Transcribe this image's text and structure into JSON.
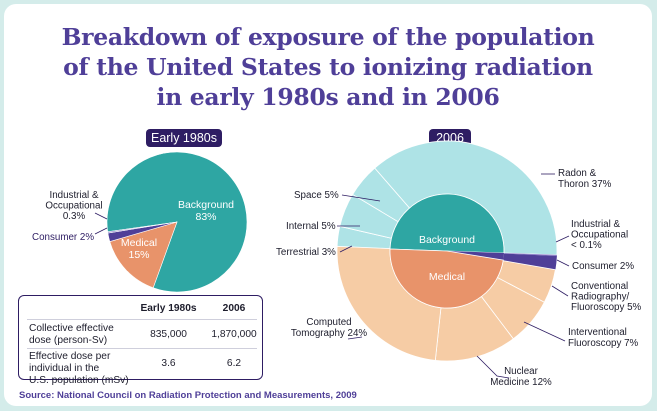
{
  "title_lines": [
    "Breakdown of exposure of the population",
    "of the United States to ionizing radiation",
    "in early 1980s and in 2006"
  ],
  "colors": {
    "title": "#4f3f98",
    "pill": "#2e1d63",
    "background": "#2ea6a3",
    "medical": "#e8936a",
    "purple": "#4f3f98",
    "light_teal": "#aee3e6",
    "peach": "#f6cca5",
    "page": "#d4ecea"
  },
  "chart_data": [
    {
      "type": "pie",
      "title": "Early 1980s",
      "slices": [
        {
          "label": "Background",
          "value": 83,
          "display": "83%"
        },
        {
          "label": "Medical",
          "value": 15,
          "display": "15%"
        },
        {
          "label": "Consumer",
          "value": 2,
          "display": "2%"
        },
        {
          "label": "Industrial & Occupational",
          "value": 0.3,
          "display": "0.3%"
        }
      ],
      "labels": {
        "background": [
          "Background",
          "83%"
        ],
        "medical": [
          "Medical",
          "15%"
        ],
        "consumer": [
          "Consumer 2%"
        ],
        "industrial": [
          "Industrial &",
          "Occupational",
          "0.3%"
        ]
      }
    },
    {
      "type": "pie",
      "title": "2006",
      "inner_ring": [
        {
          "label": "Background",
          "value": 50
        },
        {
          "label": "Medical",
          "value": 48
        },
        {
          "label": "Consumer",
          "value": 2
        }
      ],
      "outer_ring": [
        {
          "label": "Radon & Thoron",
          "value": 37,
          "group": "Background"
        },
        {
          "label": "Space",
          "value": 5,
          "group": "Background"
        },
        {
          "label": "Internal",
          "value": 5,
          "group": "Background"
        },
        {
          "label": "Terrestrial",
          "value": 3,
          "group": "Background"
        },
        {
          "label": "Computed Tomography",
          "value": 24,
          "group": "Medical"
        },
        {
          "label": "Nuclear Medicine",
          "value": 12,
          "group": "Medical"
        },
        {
          "label": "Interventional Fluoroscopy",
          "value": 7,
          "group": "Medical"
        },
        {
          "label": "Conventional Radiography/ Fluoroscopy",
          "value": 5,
          "group": "Medical"
        },
        {
          "label": "Consumer",
          "value": 2,
          "group": "Consumer"
        },
        {
          "label": "Industrial & Occupational",
          "value": 0.1,
          "group": "Other"
        }
      ],
      "labels": {
        "background": "Background",
        "medical": "Medical",
        "radon": [
          "Radon &",
          "Thoron 37%"
        ],
        "space": "Space 5%",
        "internal": "Internal 5%",
        "terrestrial": "Terrestrial 3%",
        "industrial": [
          "Industrial &",
          "Occupational",
          "< 0.1%"
        ],
        "consumer": "Consumer 2%",
        "conventional": [
          "Conventional",
          "Radiography/",
          "Fluoroscopy 5%"
        ],
        "interventional": [
          "Interventional",
          "Fluoroscopy 7%"
        ],
        "nuclear": [
          "Nuclear",
          "Medicine 12%"
        ],
        "ct": [
          "Computed",
          "Tomography 24%"
        ]
      }
    }
  ],
  "table": {
    "headers": [
      "",
      "Early 1980s",
      "2006"
    ],
    "rows": [
      {
        "label": [
          "Collective effective",
          "dose (person-Sv)"
        ],
        "early": "835,000",
        "y2006": "1,870,000"
      },
      {
        "label": [
          "Effective dose per",
          "individual in the",
          "U.S. population (mSv)"
        ],
        "early": "3.6",
        "y2006": "6.2"
      }
    ]
  },
  "source": "Source: National Council on Radiation Protection and Measurements, 2009"
}
